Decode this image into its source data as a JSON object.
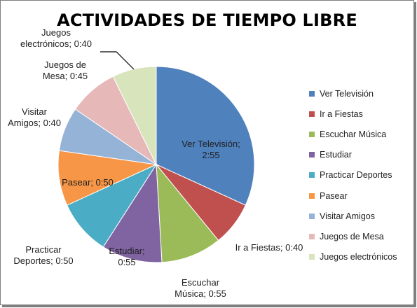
{
  "chart_data": {
    "type": "pie",
    "title": "ACTIVIDADES DE TIEMPO LIBRE",
    "categories": [
      "Ver Televisión",
      "Ir a Fiestas",
      "Escuchar Música",
      "Estudiar",
      "Practicar Deportes",
      "Pasear",
      "Visitar Amigos",
      "Juegos de Mesa",
      "Juegos electrónicos"
    ],
    "values": [
      175,
      40,
      55,
      55,
      50,
      50,
      40,
      45,
      40
    ],
    "value_labels": [
      "2:55",
      "0:40",
      "0:55",
      "0:55",
      "0:50",
      "0:50",
      "0:40",
      "0:45",
      "0:40"
    ],
    "colors": [
      "#4f81bd",
      "#c0504d",
      "#9bbb59",
      "#8064a2",
      "#4bacc6",
      "#f79646",
      "#95b3d7",
      "#e6b9b8",
      "#d7e4bc"
    ],
    "data_labels": [
      [
        "Ver Televisión;",
        "2:55"
      ],
      [
        "Ir a Fiestas; 0:40"
      ],
      [
        "Escuchar",
        "Música; 0:55"
      ],
      [
        "Estudiar;",
        "0:55"
      ],
      [
        "Practicar",
        "Deportes; 0:50"
      ],
      [
        "Pasear; 0:50"
      ],
      [
        "Visitar",
        "Amigos; 0:40"
      ],
      [
        "Juegos de",
        "Mesa; 0:45"
      ],
      [
        "Juegos",
        "electrónicos; 0:40"
      ]
    ],
    "legend_position": "right"
  }
}
